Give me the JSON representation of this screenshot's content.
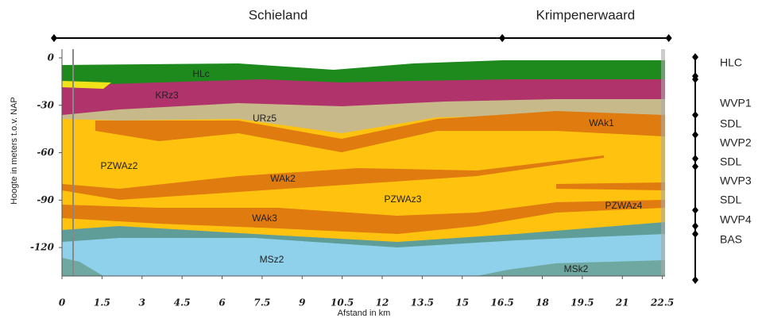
{
  "chart_data": {
    "type": "cross-section",
    "regions": [
      {
        "name": "Schieland",
        "from": 0,
        "to": 16.5
      },
      {
        "name": "Krimpenerwaard",
        "from": 16.5,
        "to": 22.5
      }
    ],
    "xlabel": "Afstand in km",
    "ylabel": "Hoogte in meters t.o.v. NAP",
    "xlim": [
      0,
      22.6
    ],
    "xticks": [
      0,
      1.5,
      3,
      4.5,
      6,
      7.5,
      9,
      10.5,
      12,
      13.5,
      15,
      16.5,
      18,
      19.5,
      21,
      22.5
    ],
    "ylim": [
      -138,
      5.5
    ],
    "yticks": [
      0,
      -30,
      -60,
      -90,
      -120
    ],
    "layer_labels": [
      "HLc",
      "KRz3",
      "URz5",
      "WAk1",
      "PZWAz2",
      "WAk2",
      "PZWAz3",
      "PZWAz4",
      "WAk3",
      "MSz2",
      "MSk2"
    ],
    "legend": [
      "HLC",
      "WVP1",
      "SDL",
      "WVP2",
      "SDL",
      "WVP3",
      "SDL",
      "WVP4",
      "BAS"
    ]
  }
}
